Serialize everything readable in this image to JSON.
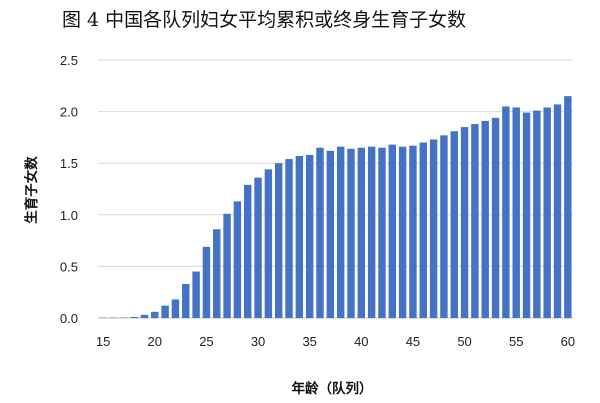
{
  "chart_data": {
    "type": "bar",
    "title": "图 4   中国各队列妇女平均累积或终身生育子女数",
    "xlabel": "年龄（队列）",
    "ylabel": "生育子女数",
    "x": [
      15,
      16,
      17,
      18,
      19,
      20,
      21,
      22,
      23,
      24,
      25,
      26,
      27,
      28,
      29,
      30,
      31,
      32,
      33,
      34,
      35,
      36,
      37,
      38,
      39,
      40,
      41,
      42,
      43,
      44,
      45,
      46,
      47,
      48,
      49,
      50,
      51,
      52,
      53,
      54,
      55,
      56,
      57,
      58,
      59,
      60
    ],
    "values": [
      0.0,
      0.0,
      0.0,
      0.01,
      0.03,
      0.06,
      0.12,
      0.18,
      0.33,
      0.45,
      0.69,
      0.86,
      1.01,
      1.13,
      1.29,
      1.36,
      1.44,
      1.5,
      1.54,
      1.57,
      1.58,
      1.65,
      1.62,
      1.66,
      1.64,
      1.65,
      1.66,
      1.65,
      1.68,
      1.66,
      1.67,
      1.7,
      1.73,
      1.77,
      1.81,
      1.85,
      1.88,
      1.91,
      1.94,
      2.05,
      2.04,
      1.99,
      2.01,
      2.04,
      2.07,
      2.15
    ],
    "xticks": [
      15,
      20,
      25,
      30,
      35,
      40,
      45,
      50,
      55,
      60
    ],
    "yticks": [
      "0.0",
      "0.5",
      "1.0",
      "1.5",
      "2.0",
      "2.5"
    ],
    "ylim": [
      0,
      2.5
    ],
    "xlim": [
      15,
      60
    ],
    "grid": true,
    "legend": false,
    "bar_color": "#4472c4"
  }
}
